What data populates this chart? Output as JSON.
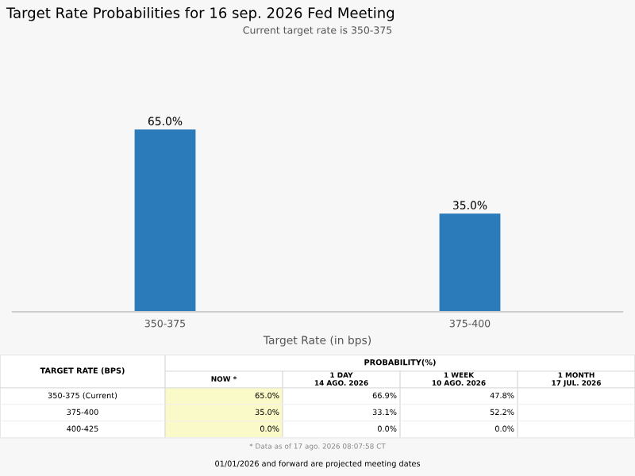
{
  "chart_data": [
    {
      "type": "bar",
      "title": "Target Rate Probabilities for 16 sep. 2026 Fed Meeting",
      "subtitle": "Current target rate is 350-375",
      "xlabel": "Target Rate (in bps)",
      "categories": [
        "350-375",
        "375-400"
      ],
      "values": [
        65.0,
        35.0
      ],
      "value_labels": [
        "65.0%",
        "35.0%"
      ],
      "color": "#2b7bba"
    },
    {
      "type": "other",
      "ylabel": "TARGET RATE (BPS)",
      "xlabel": "PROBABILITY(%)",
      "categories": [
        "NOW *",
        "1 DAY\n14 AGO. 2026",
        "1 WEEK\n10 AGO. 2026",
        "1 MONTH\n17 JUL. 2026"
      ],
      "y_categories": [
        "350-375 (Current)",
        "375-400",
        "400-425"
      ],
      "cell_labels": [
        [
          "65.0%",
          "66.9%",
          "47.8%",
          null
        ],
        [
          "35.0%",
          "33.1%",
          "52.2%",
          null
        ],
        [
          "0.0%",
          "0.0%",
          "0.0%",
          null
        ]
      ],
      "annotations": [
        "* Data as of 17 ago. 2026 08:07:58 CT",
        "01/01/2026 and forward are projected meeting dates"
      ]
    }
  ]
}
